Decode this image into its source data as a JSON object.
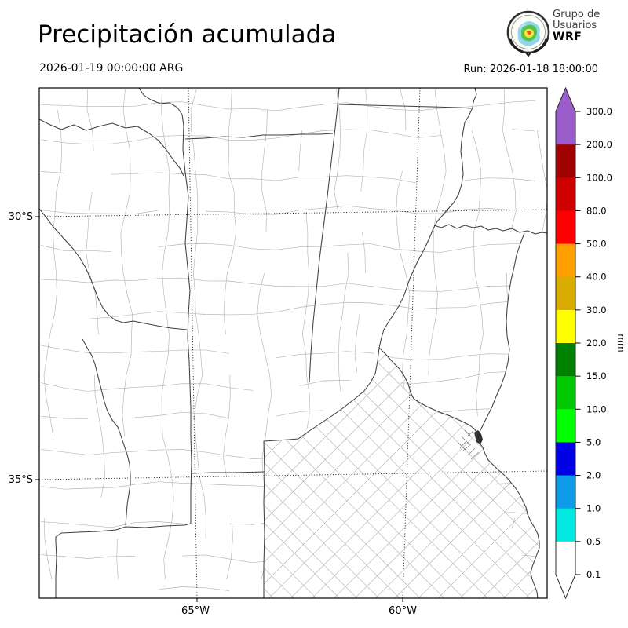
{
  "header": {
    "title": "Precipitación acumulada",
    "valid_time": "2026-01-19 00:00:00 ARG",
    "run_label": "Run: 2026-01-18 18:00:00"
  },
  "logo": {
    "line1": "Grupo de",
    "line2": "Usuarios",
    "line3": "WRF"
  },
  "map": {
    "x_tick_labels": [
      "65°W",
      "60°W"
    ],
    "y_tick_labels": [
      "30°S",
      "35°S"
    ]
  },
  "colorbar": {
    "unit": "mm",
    "tick_labels": [
      "300.0",
      "200.0",
      "100.0",
      "80.0",
      "50.0",
      "40.0",
      "30.0",
      "20.0",
      "15.0",
      "10.0",
      "5.0",
      "2.0",
      "1.0",
      "0.5",
      "0.1"
    ],
    "segment_colors_top_to_bottom": [
      "#a00000",
      "#d00000",
      "#ff0000",
      "#ffa000",
      "#d8ac00",
      "#ffff00",
      "#008000",
      "#00c800",
      "#00ff00",
      "#0000e6",
      "#0d9ce8",
      "#00e8e0",
      "#ffffff"
    ],
    "over_color": "#9a5cc8",
    "top_segment_color": "#9a5cc8",
    "under_color": "#ffffff",
    "outline_color": "#2a2a2a"
  }
}
